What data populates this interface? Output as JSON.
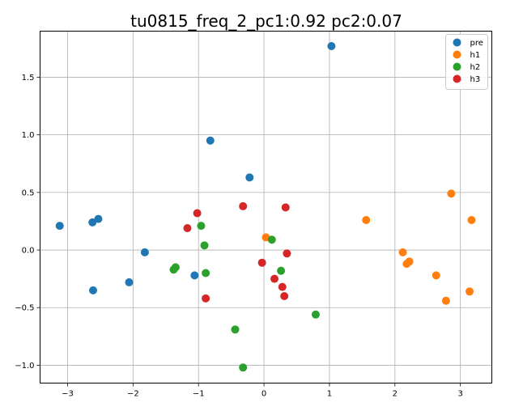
{
  "chart_data": {
    "type": "scatter",
    "title": "tu0815_freq_2_pc1:0.92 pc2:0.07",
    "xlabel": "",
    "ylabel": "",
    "xlim": [
      -3.42,
      3.48
    ],
    "ylim": [
      -1.155,
      1.9
    ],
    "xticks": [
      -3,
      -2,
      -1,
      0,
      1,
      2,
      3
    ],
    "xtick_labels": [
      "−3",
      "−2",
      "−1",
      "0",
      "1",
      "2",
      "3"
    ],
    "yticks": [
      -1.0,
      -0.5,
      0.0,
      0.5,
      1.0,
      1.5
    ],
    "ytick_labels": [
      "−1.0",
      "−0.5",
      "0.0",
      "0.5",
      "1.0",
      "1.5"
    ],
    "grid": true,
    "legend_position": "top-right",
    "series": [
      {
        "name": "pre",
        "color": "#1f77b4",
        "points": [
          [
            -3.12,
            0.21
          ],
          [
            -2.62,
            0.24
          ],
          [
            -2.53,
            0.27
          ],
          [
            -2.61,
            -0.35
          ],
          [
            -2.06,
            -0.28
          ],
          [
            -1.82,
            -0.02
          ],
          [
            -1.06,
            -0.22
          ],
          [
            -0.82,
            0.95
          ],
          [
            -0.22,
            0.63
          ],
          [
            1.03,
            1.77
          ]
        ]
      },
      {
        "name": "h1",
        "color": "#ff7f0e",
        "points": [
          [
            0.03,
            0.11
          ],
          [
            1.56,
            0.26
          ],
          [
            2.12,
            -0.02
          ],
          [
            2.18,
            -0.12
          ],
          [
            2.22,
            -0.1
          ],
          [
            2.63,
            -0.22
          ],
          [
            2.78,
            -0.44
          ],
          [
            2.86,
            0.49
          ],
          [
            3.14,
            -0.36
          ],
          [
            3.17,
            0.26
          ]
        ]
      },
      {
        "name": "h2",
        "color": "#2ca02c",
        "points": [
          [
            -1.38,
            -0.17
          ],
          [
            -1.35,
            -0.15
          ],
          [
            -0.96,
            0.21
          ],
          [
            -0.91,
            0.04
          ],
          [
            -0.89,
            -0.2
          ],
          [
            -0.44,
            -0.69
          ],
          [
            -0.32,
            -1.02
          ],
          [
            0.12,
            0.09
          ],
          [
            0.26,
            -0.18
          ],
          [
            0.79,
            -0.56
          ]
        ]
      },
      {
        "name": "h3",
        "color": "#d62728",
        "points": [
          [
            -1.17,
            0.19
          ],
          [
            -1.02,
            0.32
          ],
          [
            -0.89,
            -0.42
          ],
          [
            -0.32,
            0.38
          ],
          [
            -0.03,
            -0.11
          ],
          [
            0.16,
            -0.25
          ],
          [
            0.28,
            -0.32
          ],
          [
            0.31,
            -0.4
          ],
          [
            0.33,
            0.37
          ],
          [
            0.35,
            -0.03
          ]
        ]
      }
    ]
  },
  "colors": {
    "background": "#ffffff",
    "grid": "#b0b0b0",
    "axes": "#000000"
  }
}
